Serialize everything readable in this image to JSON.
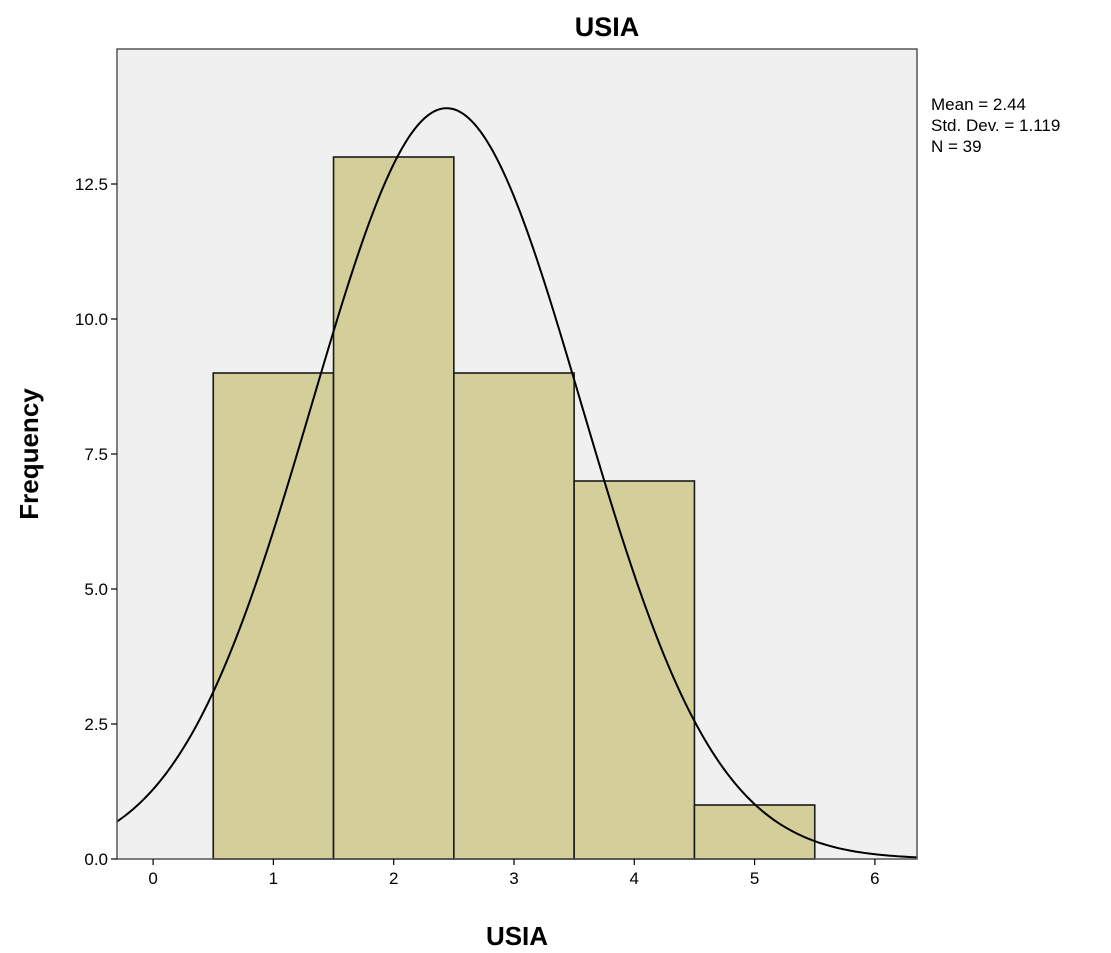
{
  "chart_data": {
    "type": "bar",
    "subtype": "histogram",
    "title": "USIA",
    "xlabel": "USIA",
    "ylabel": "Frequency",
    "bins": [
      {
        "from": 0.5,
        "to": 1.5,
        "value": 9
      },
      {
        "from": 1.5,
        "to": 2.5,
        "value": 13
      },
      {
        "from": 2.5,
        "to": 3.5,
        "value": 9
      },
      {
        "from": 3.5,
        "to": 4.5,
        "value": 7
      },
      {
        "from": 4.5,
        "to": 5.5,
        "value": 1
      }
    ],
    "xlim": [
      -0.3,
      6.35
    ],
    "ylim": [
      0,
      15
    ],
    "xticks": [
      "0",
      "1",
      "2",
      "3",
      "4",
      "5",
      "6"
    ],
    "yticks": [
      "0.0",
      "2.5",
      "5.0",
      "7.5",
      "10.0",
      "12.5"
    ],
    "normal_curve": {
      "mean": 2.44,
      "std": 1.119,
      "n": 39,
      "bin_width": 1
    },
    "stats": {
      "mean": "Mean = 2.44",
      "std_dev": "Std. Dev. = 1.119",
      "n": "N = 39"
    },
    "grid": false,
    "colors": {
      "bar_fill": "#d3ce9a",
      "bar_stroke": "#1a1a1a",
      "plot_background": "#f0f0f0",
      "curve": "#000000"
    }
  }
}
